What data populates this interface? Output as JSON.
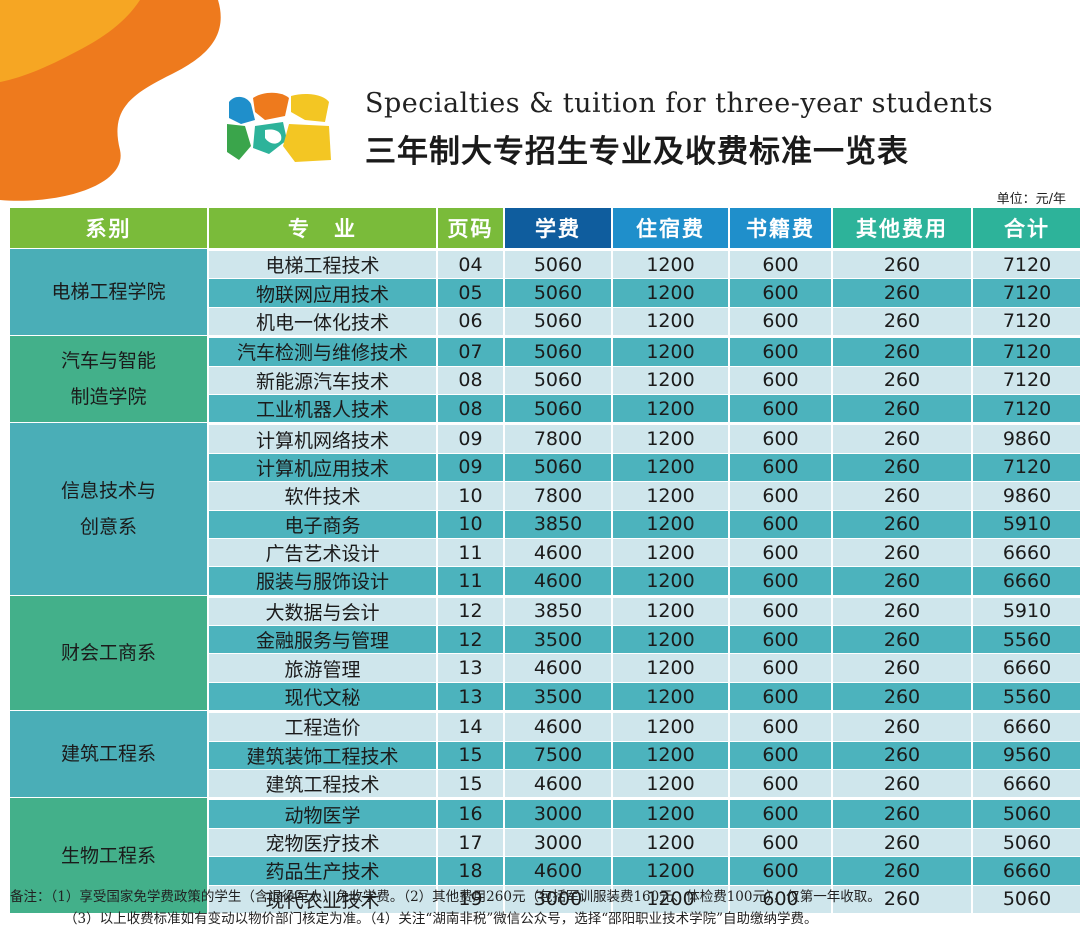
{
  "title_en": "Specialties & tuition for three-year students",
  "title_cn": "三年制大专招生专业及收费标准一览表",
  "unit": "单位：元/年",
  "headers": {
    "dept": "系别",
    "major": "专　业",
    "page": "页码",
    "tuition": "学费",
    "dorm": "住宿费",
    "books": "书籍费",
    "other": "其他费用",
    "total": "合计"
  },
  "departments": [
    {
      "name": "电梯工程学院",
      "rows": [
        {
          "major": "电梯工程技术",
          "page": "04",
          "tuition": "5060",
          "dorm": "1200",
          "books": "600",
          "other": "260",
          "total": "7120"
        },
        {
          "major": "物联网应用技术",
          "page": "05",
          "tuition": "5060",
          "dorm": "1200",
          "books": "600",
          "other": "260",
          "total": "7120"
        },
        {
          "major": "机电一体化技术",
          "page": "06",
          "tuition": "5060",
          "dorm": "1200",
          "books": "600",
          "other": "260",
          "total": "7120"
        }
      ]
    },
    {
      "name": "汽车与智能\n制造学院",
      "rows": [
        {
          "major": "汽车检测与维修技术",
          "page": "07",
          "tuition": "5060",
          "dorm": "1200",
          "books": "600",
          "other": "260",
          "total": "7120"
        },
        {
          "major": "新能源汽车技术",
          "page": "08",
          "tuition": "5060",
          "dorm": "1200",
          "books": "600",
          "other": "260",
          "total": "7120"
        },
        {
          "major": "工业机器人技术",
          "page": "08",
          "tuition": "5060",
          "dorm": "1200",
          "books": "600",
          "other": "260",
          "total": "7120"
        }
      ]
    },
    {
      "name": "信息技术与\n创意系",
      "rows": [
        {
          "major": "计算机网络技术",
          "page": "09",
          "tuition": "7800",
          "dorm": "1200",
          "books": "600",
          "other": "260",
          "total": "9860"
        },
        {
          "major": "计算机应用技术",
          "page": "09",
          "tuition": "5060",
          "dorm": "1200",
          "books": "600",
          "other": "260",
          "total": "7120"
        },
        {
          "major": "软件技术",
          "page": "10",
          "tuition": "7800",
          "dorm": "1200",
          "books": "600",
          "other": "260",
          "total": "9860"
        },
        {
          "major": "电子商务",
          "page": "10",
          "tuition": "3850",
          "dorm": "1200",
          "books": "600",
          "other": "260",
          "total": "5910"
        },
        {
          "major": "广告艺术设计",
          "page": "11",
          "tuition": "4600",
          "dorm": "1200",
          "books": "600",
          "other": "260",
          "total": "6660"
        },
        {
          "major": "服装与服饰设计",
          "page": "11",
          "tuition": "4600",
          "dorm": "1200",
          "books": "600",
          "other": "260",
          "total": "6660"
        }
      ]
    },
    {
      "name": "财会工商系",
      "rows": [
        {
          "major": "大数据与会计",
          "page": "12",
          "tuition": "3850",
          "dorm": "1200",
          "books": "600",
          "other": "260",
          "total": "5910"
        },
        {
          "major": "金融服务与管理",
          "page": "12",
          "tuition": "3500",
          "dorm": "1200",
          "books": "600",
          "other": "260",
          "total": "5560"
        },
        {
          "major": "旅游管理",
          "page": "13",
          "tuition": "4600",
          "dorm": "1200",
          "books": "600",
          "other": "260",
          "total": "6660"
        },
        {
          "major": "现代文秘",
          "page": "13",
          "tuition": "3500",
          "dorm": "1200",
          "books": "600",
          "other": "260",
          "total": "5560"
        }
      ]
    },
    {
      "name": "建筑工程系",
      "rows": [
        {
          "major": "工程造价",
          "page": "14",
          "tuition": "4600",
          "dorm": "1200",
          "books": "600",
          "other": "260",
          "total": "6660"
        },
        {
          "major": "建筑装饰工程技术",
          "page": "15",
          "tuition": "7500",
          "dorm": "1200",
          "books": "600",
          "other": "260",
          "total": "9560"
        },
        {
          "major": "建筑工程技术",
          "page": "15",
          "tuition": "4600",
          "dorm": "1200",
          "books": "600",
          "other": "260",
          "total": "6660"
        }
      ]
    },
    {
      "name": "生物工程系",
      "rows": [
        {
          "major": "动物医学",
          "page": "16",
          "tuition": "3000",
          "dorm": "1200",
          "books": "600",
          "other": "260",
          "total": "5060"
        },
        {
          "major": "宠物医疗技术",
          "page": "17",
          "tuition": "3000",
          "dorm": "1200",
          "books": "600",
          "other": "260",
          "total": "5060"
        },
        {
          "major": "药品生产技术",
          "page": "18",
          "tuition": "4600",
          "dorm": "1200",
          "books": "600",
          "other": "260",
          "total": "6660"
        },
        {
          "major": "现代农业技术",
          "page": "19",
          "tuition": "3000",
          "dorm": "1200",
          "books": "600",
          "other": "260",
          "total": "5060"
        }
      ]
    }
  ],
  "notes": {
    "line1": "备注：（1）享受国家免学费政策的学生（含退役军人）免收学费。（2）其他费用260元（包括军训服装费160元、体检费100元），仅第一年收取。",
    "line2": "（3）以上收费标准如有变动以物价部门核定为准。（4）关注“湖南非税”微信公众号，选择“邵阳职业技术学院”自助缴纳学费。"
  },
  "colors": {
    "header_green": "#7abb3a",
    "header_navy": "#0f5d9e",
    "header_blue": "#1f8fcb",
    "header_teal": "#2db39a",
    "row_light": "#cfe6ec",
    "row_dark": "#4cb3bd",
    "accent_orange": "#ee7a1d"
  }
}
